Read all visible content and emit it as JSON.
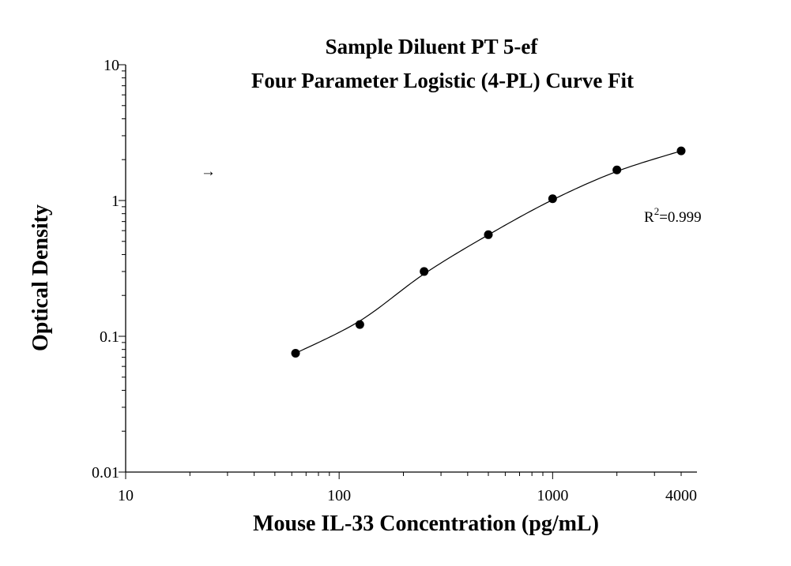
{
  "chart_data": {
    "type": "scatter",
    "title": "Sample Diluent PT 5-ef",
    "subtitle": "Four Parameter Logistic (4-PL) Curve Fit",
    "xlabel": "Mouse IL-33  Concentration (pg/mL)",
    "ylabel": "Optical Density",
    "x_scale": "log",
    "y_scale": "log",
    "xlim": [
      10,
      4000
    ],
    "ylim": [
      0.01,
      10
    ],
    "x_ticks": [
      {
        "value": 10,
        "label": "10"
      },
      {
        "value": 100,
        "label": "100"
      },
      {
        "value": 1000,
        "label": "1000"
      },
      {
        "value": 4000,
        "label": "4000"
      }
    ],
    "y_ticks": [
      {
        "value": 0.01,
        "label": "0.01"
      },
      {
        "value": 0.1,
        "label": "0.1"
      },
      {
        "value": 1,
        "label": "1"
      },
      {
        "value": 10,
        "label": "10"
      }
    ],
    "series": [
      {
        "points": [
          {
            "x": 62.5,
            "y": 0.075
          },
          {
            "x": 125,
            "y": 0.122
          },
          {
            "x": 250,
            "y": 0.3
          },
          {
            "x": 500,
            "y": 0.56
          },
          {
            "x": 1000,
            "y": 1.03
          },
          {
            "x": 2000,
            "y": 1.68
          },
          {
            "x": 4000,
            "y": 2.32
          }
        ]
      }
    ],
    "fit_curve": {
      "model": "4-PL",
      "x_range": [
        62.5,
        4000
      ]
    },
    "annotations": {
      "r2_prefix": "R",
      "r2_exp": "2",
      "r2_value": "=0.999",
      "arrow_glyph": "→"
    },
    "grid": false,
    "legend": "none"
  }
}
